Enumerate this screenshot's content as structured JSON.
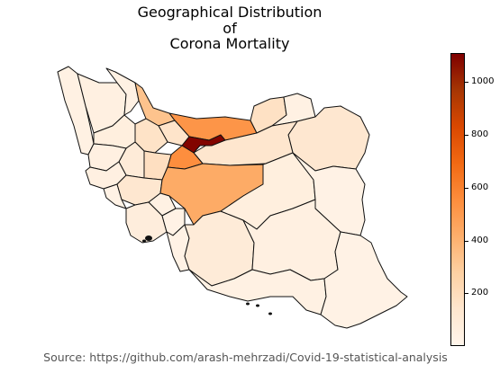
{
  "title": [
    "Geographical Distribution",
    "of",
    "Corona Mortality"
  ],
  "colorbar": {
    "min": 0,
    "max": 1110,
    "ticks": [
      200,
      400,
      600,
      800,
      1000
    ],
    "colormap": [
      "#fff5eb",
      "#fee6ce",
      "#fdd0a2",
      "#fdae6b",
      "#fd8d3c",
      "#f16913",
      "#d94801",
      "#a63603",
      "#7f0000"
    ]
  },
  "source": "Source: https://github.com/arash-mehrzadi/Covid-19-statistical-analysis",
  "regions": [
    {
      "name": "west-azarbaijan",
      "value": 40
    },
    {
      "name": "east-azarbaijan",
      "value": 50
    },
    {
      "name": "ardabil",
      "value": 40
    },
    {
      "name": "gilan",
      "value": 330
    },
    {
      "name": "mazandaran",
      "value": 520
    },
    {
      "name": "golestan",
      "value": 170
    },
    {
      "name": "north-khorasan",
      "value": 40
    },
    {
      "name": "razavi-khorasan",
      "value": 130
    },
    {
      "name": "south-khorasan",
      "value": 30
    },
    {
      "name": "semnan",
      "value": 140
    },
    {
      "name": "tehran",
      "value": 1100
    },
    {
      "name": "alborz",
      "value": 150
    },
    {
      "name": "qazvin",
      "value": 160
    },
    {
      "name": "zanjan",
      "value": 60
    },
    {
      "name": "qom",
      "value": 550
    },
    {
      "name": "markazi",
      "value": 180
    },
    {
      "name": "hamadan",
      "value": 90
    },
    {
      "name": "kurdistan",
      "value": 50
    },
    {
      "name": "kermanshah",
      "value": 50
    },
    {
      "name": "ilam",
      "value": 30
    },
    {
      "name": "lorestan",
      "value": 130
    },
    {
      "name": "isfahan",
      "value": 430
    },
    {
      "name": "khuzestan",
      "value": 70
    },
    {
      "name": "chaharmahal",
      "value": 40
    },
    {
      "name": "kohgiluyeh",
      "value": 30
    },
    {
      "name": "yazd",
      "value": 60
    },
    {
      "name": "fars",
      "value": 90
    },
    {
      "name": "bushehr",
      "value": 30
    },
    {
      "name": "kerman",
      "value": 50
    },
    {
      "name": "hormozgan",
      "value": 40
    },
    {
      "name": "sistan-baluchestan",
      "value": 30
    }
  ]
}
